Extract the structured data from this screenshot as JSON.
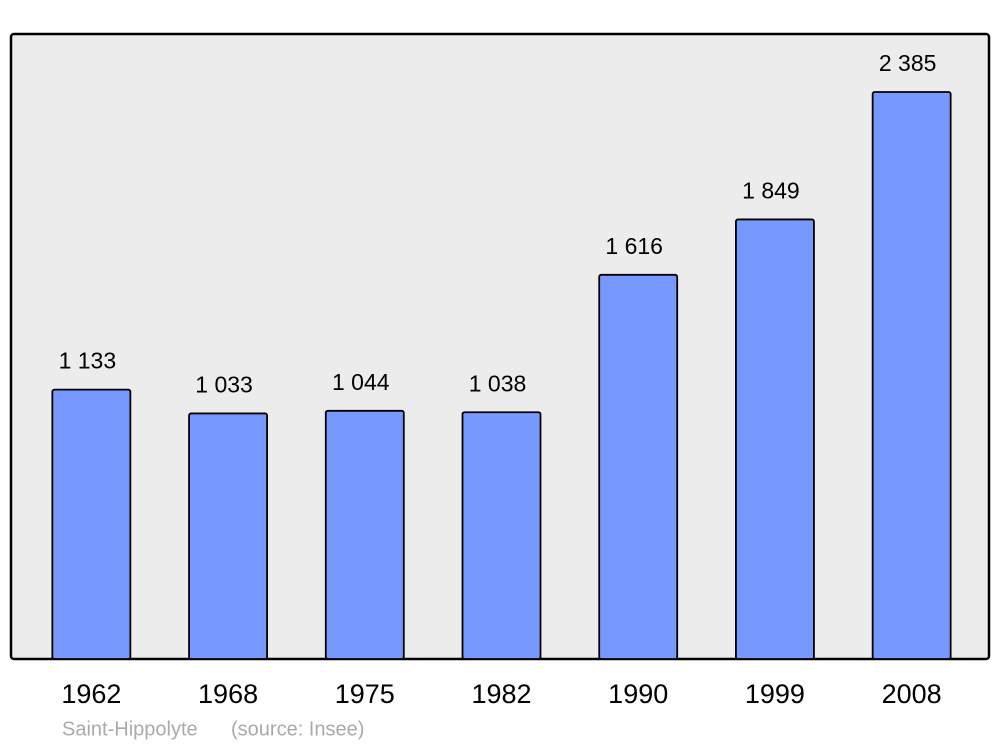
{
  "chart_data": {
    "type": "bar",
    "title": "Saint-Hippolyte",
    "source": "(source: Insee)",
    "categories": [
      "1962",
      "1968",
      "1975",
      "1982",
      "1990",
      "1999",
      "2008"
    ],
    "values": [
      1133,
      1033,
      1044,
      1038,
      1616,
      1849,
      2385
    ],
    "value_labels": [
      "1 133",
      "1 033",
      "1 044",
      "1 038",
      "1 616",
      "1 849",
      "2 385"
    ],
    "color": "#7799ff"
  }
}
